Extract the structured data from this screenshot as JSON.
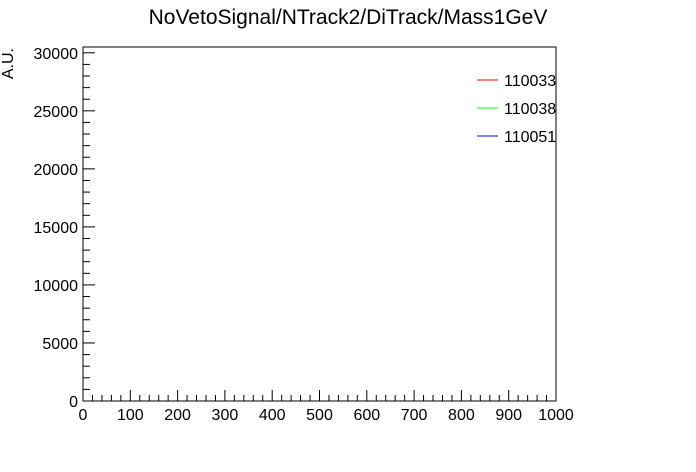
{
  "chart_data": {
    "type": "line",
    "title": "NoVetoSignal/NTrack2/DiTrack/Mass1GeV",
    "xlabel": "",
    "ylabel": "A.U.",
    "xlim": [
      0,
      1000
    ],
    "ylim": [
      0,
      30500
    ],
    "xticks": [
      0,
      100,
      200,
      300,
      400,
      500,
      600,
      700,
      800,
      900,
      1000
    ],
    "yticks": [
      0,
      5000,
      10000,
      15000,
      20000,
      25000,
      30000
    ],
    "grid": false,
    "legend_position": "top-right",
    "series": [
      {
        "name": "110033",
        "color": "#ff0000",
        "values": []
      },
      {
        "name": "110038",
        "color": "#00ff00",
        "values": []
      },
      {
        "name": "110051",
        "color": "#0000ff",
        "values": []
      }
    ]
  }
}
